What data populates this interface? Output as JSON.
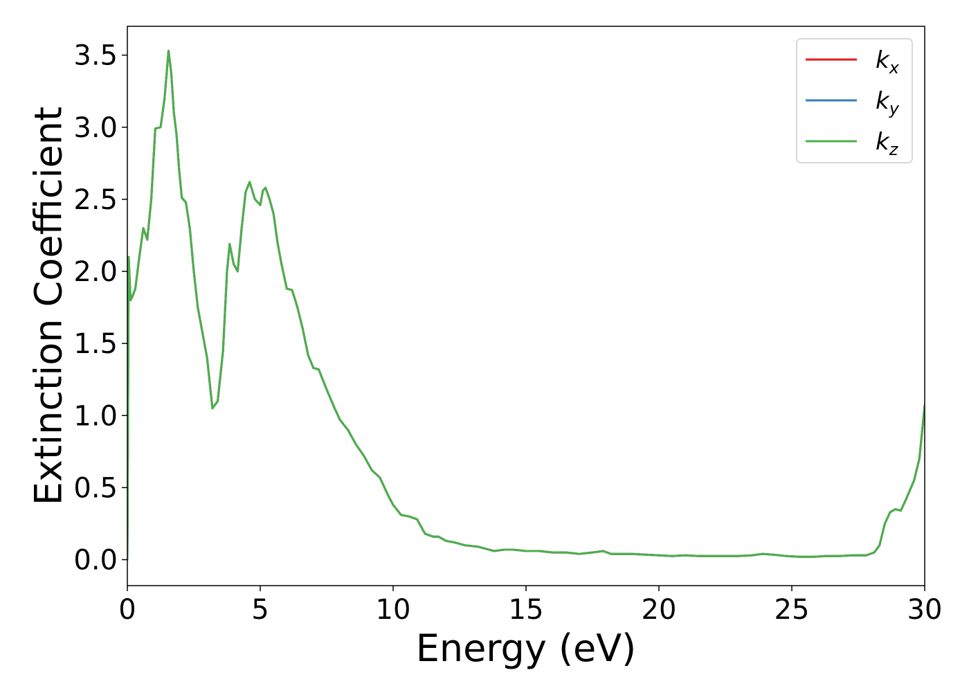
{
  "chart_data": {
    "type": "line",
    "title": "",
    "xlabel": "Energy (eV)",
    "ylabel": "Extinction Coefficient",
    "xlim": [
      0,
      30
    ],
    "ylim": [
      -0.18,
      3.7
    ],
    "xticks": [
      0,
      5,
      10,
      15,
      20,
      25,
      30
    ],
    "xtick_labels": [
      "0",
      "5",
      "10",
      "15",
      "20",
      "25",
      "30"
    ],
    "yticks": [
      0.0,
      0.5,
      1.0,
      1.5,
      2.0,
      2.5,
      3.0,
      3.5
    ],
    "ytick_labels": [
      "0.0",
      "0.5",
      "1.0",
      "1.5",
      "2.0",
      "2.5",
      "3.0",
      "3.5"
    ],
    "grid": false,
    "legend_position": "top-right",
    "x": [
      0,
      0.05,
      0.12,
      0.2,
      0.3,
      0.45,
      0.6,
      0.75,
      0.9,
      1.05,
      1.25,
      1.4,
      1.55,
      1.65,
      1.75,
      1.85,
      1.95,
      2.05,
      2.2,
      2.35,
      2.5,
      2.65,
      2.8,
      3.0,
      3.2,
      3.4,
      3.6,
      3.75,
      3.85,
      4.0,
      4.15,
      4.3,
      4.45,
      4.6,
      4.8,
      5.0,
      5.1,
      5.2,
      5.35,
      5.5,
      5.65,
      5.8,
      6.0,
      6.2,
      6.4,
      6.6,
      6.8,
      7.0,
      7.2,
      7.5,
      7.8,
      8.0,
      8.3,
      8.6,
      8.9,
      9.2,
      9.5,
      9.8,
      10.0,
      10.3,
      10.6,
      10.9,
      11.2,
      11.5,
      11.7,
      12.0,
      12.3,
      12.7,
      13.2,
      13.8,
      14.2,
      14.5,
      15.0,
      15.5,
      16.0,
      16.5,
      17.0,
      17.5,
      17.9,
      18.2,
      18.6,
      19.0,
      19.5,
      20.0,
      20.5,
      21.0,
      21.5,
      22.0,
      22.5,
      23.0,
      23.5,
      23.9,
      24.3,
      24.8,
      25.3,
      25.8,
      26.3,
      26.8,
      27.3,
      27.8,
      28.1,
      28.3,
      28.5,
      28.7,
      28.9,
      29.1,
      29.3,
      29.6,
      29.8,
      30.0
    ],
    "series": [
      {
        "name": "k_x",
        "color": "#e41a1c",
        "y": [
          0.0,
          2.1,
          1.8,
          1.83,
          1.88,
          2.1,
          2.3,
          2.22,
          2.5,
          2.99,
          3.0,
          3.2,
          3.53,
          3.38,
          3.1,
          2.95,
          2.7,
          2.51,
          2.48,
          2.3,
          2.0,
          1.75,
          1.6,
          1.4,
          1.05,
          1.1,
          1.45,
          2.0,
          2.19,
          2.05,
          2.0,
          2.3,
          2.55,
          2.62,
          2.5,
          2.46,
          2.56,
          2.58,
          2.5,
          2.4,
          2.2,
          2.05,
          1.88,
          1.87,
          1.75,
          1.6,
          1.42,
          1.33,
          1.32,
          1.18,
          1.05,
          0.97,
          0.9,
          0.8,
          0.72,
          0.62,
          0.57,
          0.45,
          0.38,
          0.31,
          0.3,
          0.28,
          0.18,
          0.16,
          0.16,
          0.13,
          0.12,
          0.1,
          0.09,
          0.06,
          0.07,
          0.07,
          0.06,
          0.06,
          0.05,
          0.05,
          0.04,
          0.05,
          0.06,
          0.04,
          0.04,
          0.04,
          0.035,
          0.03,
          0.025,
          0.03,
          0.025,
          0.025,
          0.025,
          0.025,
          0.03,
          0.04,
          0.035,
          0.025,
          0.02,
          0.02,
          0.025,
          0.025,
          0.03,
          0.03,
          0.05,
          0.1,
          0.25,
          0.33,
          0.35,
          0.34,
          0.42,
          0.55,
          0.7,
          1.07
        ]
      },
      {
        "name": "k_y",
        "color": "#377eb8",
        "y": [
          0.0,
          2.1,
          1.8,
          1.83,
          1.88,
          2.1,
          2.3,
          2.22,
          2.5,
          2.99,
          3.0,
          3.2,
          3.53,
          3.38,
          3.1,
          2.95,
          2.7,
          2.51,
          2.48,
          2.3,
          2.0,
          1.75,
          1.6,
          1.4,
          1.05,
          1.1,
          1.45,
          2.0,
          2.19,
          2.05,
          2.0,
          2.3,
          2.55,
          2.62,
          2.5,
          2.46,
          2.56,
          2.58,
          2.5,
          2.4,
          2.2,
          2.05,
          1.88,
          1.87,
          1.75,
          1.6,
          1.42,
          1.33,
          1.32,
          1.18,
          1.05,
          0.97,
          0.9,
          0.8,
          0.72,
          0.62,
          0.57,
          0.45,
          0.38,
          0.31,
          0.3,
          0.28,
          0.18,
          0.16,
          0.16,
          0.13,
          0.12,
          0.1,
          0.09,
          0.06,
          0.07,
          0.07,
          0.06,
          0.06,
          0.05,
          0.05,
          0.04,
          0.05,
          0.06,
          0.04,
          0.04,
          0.04,
          0.035,
          0.03,
          0.025,
          0.03,
          0.025,
          0.025,
          0.025,
          0.025,
          0.03,
          0.04,
          0.035,
          0.025,
          0.02,
          0.02,
          0.025,
          0.025,
          0.03,
          0.03,
          0.05,
          0.1,
          0.25,
          0.33,
          0.35,
          0.34,
          0.42,
          0.55,
          0.7,
          1.07
        ]
      },
      {
        "name": "k_z",
        "color": "#4daf4a",
        "y": [
          0.0,
          2.1,
          1.8,
          1.83,
          1.88,
          2.1,
          2.3,
          2.22,
          2.5,
          2.99,
          3.0,
          3.2,
          3.53,
          3.38,
          3.1,
          2.95,
          2.7,
          2.51,
          2.48,
          2.3,
          2.0,
          1.75,
          1.6,
          1.4,
          1.05,
          1.1,
          1.45,
          2.0,
          2.19,
          2.05,
          2.0,
          2.3,
          2.55,
          2.62,
          2.5,
          2.46,
          2.56,
          2.58,
          2.5,
          2.4,
          2.2,
          2.05,
          1.88,
          1.87,
          1.75,
          1.6,
          1.42,
          1.33,
          1.32,
          1.18,
          1.05,
          0.97,
          0.9,
          0.8,
          0.72,
          0.62,
          0.57,
          0.45,
          0.38,
          0.31,
          0.3,
          0.28,
          0.18,
          0.16,
          0.16,
          0.13,
          0.12,
          0.1,
          0.09,
          0.06,
          0.07,
          0.07,
          0.06,
          0.06,
          0.05,
          0.05,
          0.04,
          0.05,
          0.06,
          0.04,
          0.04,
          0.04,
          0.035,
          0.03,
          0.025,
          0.03,
          0.025,
          0.025,
          0.025,
          0.025,
          0.03,
          0.04,
          0.035,
          0.025,
          0.02,
          0.02,
          0.025,
          0.025,
          0.03,
          0.03,
          0.05,
          0.1,
          0.25,
          0.33,
          0.35,
          0.34,
          0.42,
          0.55,
          0.7,
          1.07
        ]
      }
    ],
    "legend": [
      {
        "symbol": "k",
        "subscript": "x",
        "color": "#e41a1c"
      },
      {
        "symbol": "k",
        "subscript": "y",
        "color": "#377eb8"
      },
      {
        "symbol": "k",
        "subscript": "z",
        "color": "#4daf4a"
      }
    ]
  }
}
